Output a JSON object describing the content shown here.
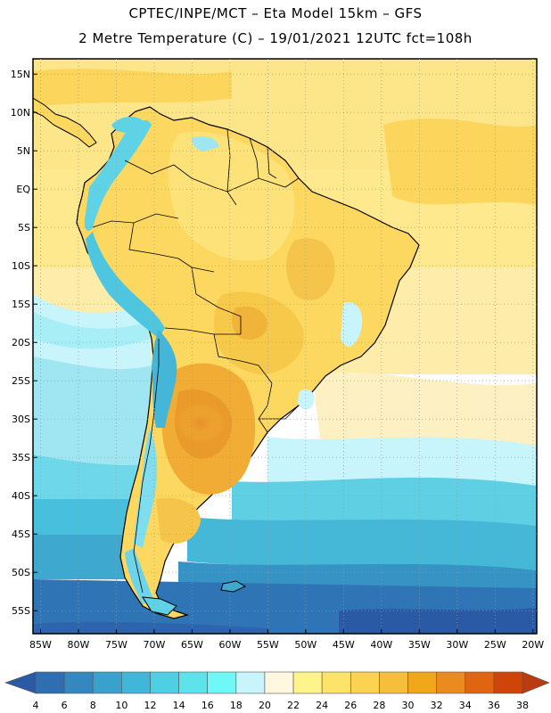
{
  "title_line1": "CPTEC/INPE/MCT –  Eta Model 15km – GFS",
  "title_line2": "2 Metre Temperature (C) – 19/01/2021 12UTC fct=108h",
  "map": {
    "lon_range": [
      -86,
      -19.5
    ],
    "lat_range": [
      -58,
      17
    ],
    "y_ticks": [
      {
        "lat": 15,
        "label": "15N"
      },
      {
        "lat": 10,
        "label": "10N"
      },
      {
        "lat": 5,
        "label": "5N"
      },
      {
        "lat": 0,
        "label": "EQ"
      },
      {
        "lat": -5,
        "label": "5S"
      },
      {
        "lat": -10,
        "label": "10S"
      },
      {
        "lat": -15,
        "label": "15S"
      },
      {
        "lat": -20,
        "label": "20S"
      },
      {
        "lat": -25,
        "label": "25S"
      },
      {
        "lat": -30,
        "label": "30S"
      },
      {
        "lat": -35,
        "label": "35S"
      },
      {
        "lat": -40,
        "label": "40S"
      },
      {
        "lat": -45,
        "label": "45S"
      },
      {
        "lat": -50,
        "label": "50S"
      },
      {
        "lat": -55,
        "label": "55S"
      }
    ],
    "x_ticks": [
      {
        "lon": -85,
        "label": "85W"
      },
      {
        "lon": -80,
        "label": "80W"
      },
      {
        "lon": -75,
        "label": "75W"
      },
      {
        "lon": -70,
        "label": "70W"
      },
      {
        "lon": -65,
        "label": "65W"
      },
      {
        "lon": -60,
        "label": "60W"
      },
      {
        "lon": -55,
        "label": "55W"
      },
      {
        "lon": -50,
        "label": "50W"
      },
      {
        "lon": -45,
        "label": "45W"
      },
      {
        "lon": -40,
        "label": "40W"
      },
      {
        "lon": -35,
        "label": "35W"
      },
      {
        "lon": -30,
        "label": "30W"
      },
      {
        "lon": -25,
        "label": "25W"
      },
      {
        "lon": -20,
        "label": "20W"
      }
    ],
    "grid": "dotted"
  },
  "colorbar": {
    "labels": [
      "4",
      "6",
      "8",
      "10",
      "12",
      "14",
      "16",
      "18",
      "20",
      "22",
      "24",
      "26",
      "28",
      "30",
      "32",
      "34",
      "36",
      "38"
    ],
    "colors": [
      "#2b5aa4",
      "#2f6fb1",
      "#3487bf",
      "#3aa0cc",
      "#40b6d8",
      "#4fcfe2",
      "#5de3ea",
      "#6ef8f8",
      "#c8f4fb",
      "#fff7e0",
      "#fff38c",
      "#fee36a",
      "#fcd351",
      "#f5bf3c",
      "#f0a81a",
      "#eb8a1f",
      "#e06411",
      "#cf4409",
      "#b83c10"
    ]
  }
}
